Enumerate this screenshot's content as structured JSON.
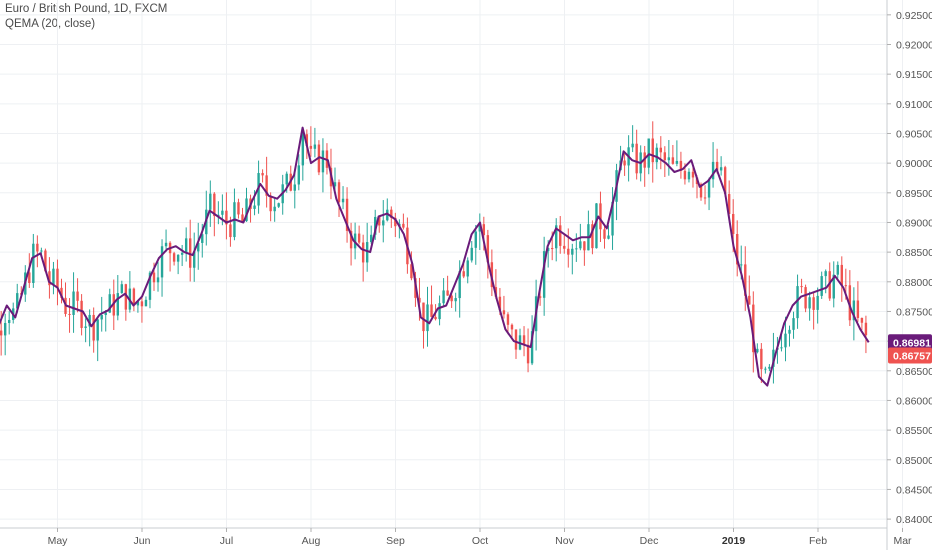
{
  "header": {
    "title": "Euro / British Pound, 1D, FXCM",
    "indicator": "QEMA (20, close)"
  },
  "colors": {
    "up": "#26a69a",
    "down": "#ef5350",
    "ma": "#6a1b7a",
    "grid": "#eef0f3",
    "axis": "#555555"
  },
  "badges": {
    "ma_value": "0.86981",
    "price_value": "0.86757"
  },
  "chart_data": {
    "type": "line",
    "title": "Euro / British Pound, 1D, FXCM",
    "ylim": [
      0.8385,
      0.9275
    ],
    "y_ticks": [
      "0.92500",
      "0.92000",
      "0.91500",
      "0.91000",
      "0.90500",
      "0.90000",
      "0.89500",
      "0.89000",
      "0.88500",
      "0.88000",
      "0.87500",
      "0.87000",
      "0.86500",
      "0.86000",
      "0.85500",
      "0.85000",
      "0.84500",
      "0.84000"
    ],
    "x_ticks": [
      {
        "label": "May",
        "month_index": 1,
        "bold": false
      },
      {
        "label": "Jun",
        "month_index": 2,
        "bold": false
      },
      {
        "label": "Jul",
        "month_index": 3,
        "bold": false
      },
      {
        "label": "Aug",
        "month_index": 4,
        "bold": false
      },
      {
        "label": "Sep",
        "month_index": 5,
        "bold": false
      },
      {
        "label": "Oct",
        "month_index": 6,
        "bold": false
      },
      {
        "label": "Nov",
        "month_index": 7,
        "bold": false
      },
      {
        "label": "Dec",
        "month_index": 8,
        "bold": false
      },
      {
        "label": "2019",
        "month_index": 9,
        "bold": true
      },
      {
        "label": "Feb",
        "month_index": 10,
        "bold": false
      },
      {
        "label": "Mar",
        "month_index": 11,
        "bold": false
      }
    ],
    "grid": true,
    "series": [
      {
        "x_month": [
          0.0,
          0.1,
          0.2,
          0.3,
          0.4,
          0.5,
          0.6,
          0.7,
          0.8,
          0.9,
          1.0,
          1.1,
          1.2,
          1.3,
          1.4,
          1.5,
          1.6,
          1.7,
          1.8,
          1.9,
          2.0,
          2.1,
          2.2,
          2.3,
          2.4,
          2.5,
          2.6,
          2.7,
          2.8,
          2.9,
          3.0,
          3.1,
          3.2,
          3.3,
          3.4,
          3.5,
          3.6,
          3.7,
          3.8,
          3.9,
          4.0,
          4.1,
          4.2,
          4.3,
          4.4,
          4.5,
          4.6,
          4.7,
          4.8,
          4.9,
          5.0,
          5.1,
          5.2,
          5.3,
          5.4,
          5.5,
          5.6,
          5.7,
          5.8,
          5.9,
          6.0,
          6.1,
          6.2,
          6.3,
          6.4,
          6.5,
          6.6,
          6.7,
          6.8,
          6.9,
          7.0,
          7.1,
          7.2,
          7.3,
          7.4,
          7.5,
          7.6,
          7.7,
          7.8,
          7.9,
          8.0,
          8.1,
          8.2,
          8.3,
          8.4,
          8.5,
          8.6,
          8.7,
          8.8,
          8.9,
          9.0,
          9.1,
          9.2,
          9.3,
          9.4,
          9.5,
          9.6,
          9.7,
          9.8,
          9.9,
          10.0,
          10.1,
          10.2,
          10.3,
          10.4,
          10.5,
          10.6
        ],
        "values": [
          0.872,
          0.868,
          0.865,
          0.8725,
          0.876,
          0.874,
          0.879,
          0.884,
          0.8848,
          0.88,
          0.879,
          0.876,
          0.8755,
          0.875,
          0.8725,
          0.8745,
          0.8752,
          0.877,
          0.878,
          0.876,
          0.8775,
          0.881,
          0.884,
          0.8855,
          0.886,
          0.885,
          0.8845,
          0.888,
          0.892,
          0.891,
          0.89,
          0.8905,
          0.89,
          0.8935,
          0.8965,
          0.8945,
          0.894,
          0.8955,
          0.898,
          0.906,
          0.9,
          0.901,
          0.9005,
          0.894,
          0.8905,
          0.887,
          0.8855,
          0.885,
          0.891,
          0.8915,
          0.8905,
          0.888,
          0.883,
          0.874,
          0.873,
          0.8755,
          0.876,
          0.8795,
          0.883,
          0.888,
          0.89,
          0.883,
          0.877,
          0.872,
          0.87,
          0.8695,
          0.869,
          0.878,
          0.886,
          0.889,
          0.888,
          0.887,
          0.8875,
          0.8875,
          0.891,
          0.889,
          0.895,
          0.902,
          0.9005,
          0.9,
          0.9015,
          0.901,
          0.9,
          0.8985,
          0.899,
          0.9005,
          0.896,
          0.897,
          0.899,
          0.895,
          0.886,
          0.881,
          0.874,
          0.864,
          0.8625,
          0.868,
          0.873,
          0.876,
          0.8775,
          0.878,
          0.8785,
          0.879,
          0.881,
          0.879,
          0.875,
          0.872,
          0.8698
        ],
        "name": "QEMA (20, close)"
      }
    ]
  }
}
